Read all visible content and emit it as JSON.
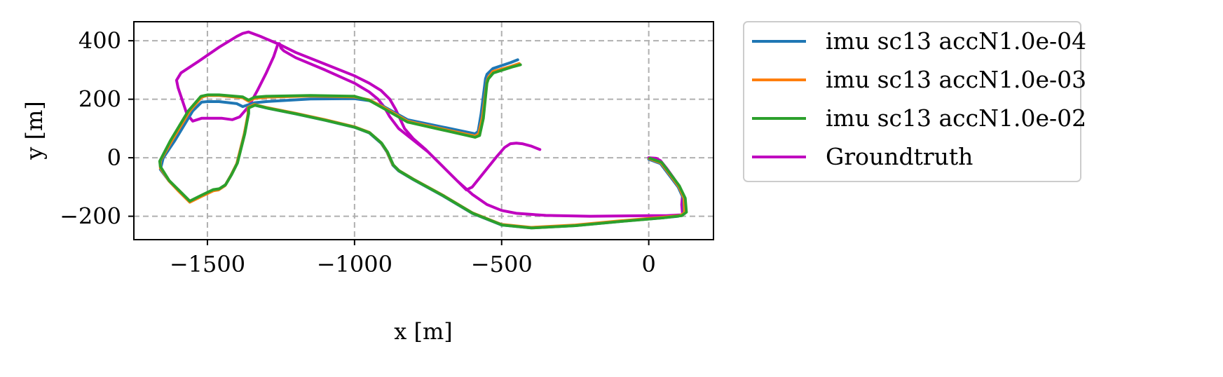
{
  "chart_data": {
    "type": "line",
    "title": "",
    "xlabel": "x [m]",
    "ylabel": "y [m]",
    "xlim": [
      -1750,
      220
    ],
    "ylim": [
      -280,
      465
    ],
    "x_ticks": [
      -1500,
      -1000,
      -500,
      0
    ],
    "x_tick_labels": [
      "−1500",
      "−1000",
      "−500",
      "0"
    ],
    "y_ticks": [
      -200,
      0,
      200,
      400
    ],
    "y_tick_labels": [
      "−200",
      "0",
      "200",
      "400"
    ],
    "grid": true,
    "grid_style": "dashed",
    "legend_position": "outside-right-top",
    "series": [
      {
        "name": "imu sc13 accN1.0e-04",
        "color": "#1f77b4",
        "points": [
          [
            -445,
            335
          ],
          [
            -470,
            325
          ],
          [
            -530,
            305
          ],
          [
            -550,
            285
          ],
          [
            -555,
            270
          ],
          [
            -570,
            150
          ],
          [
            -580,
            90
          ],
          [
            -590,
            82
          ],
          [
            -700,
            105
          ],
          [
            -820,
            130
          ],
          [
            -900,
            175
          ],
          [
            -950,
            195
          ],
          [
            -1000,
            202
          ],
          [
            -1150,
            201
          ],
          [
            -1300,
            192
          ],
          [
            -1340,
            188
          ],
          [
            -1380,
            175
          ],
          [
            -1400,
            185
          ],
          [
            -1460,
            192
          ],
          [
            -1500,
            192
          ],
          [
            -1520,
            190
          ],
          [
            -1550,
            160
          ],
          [
            -1610,
            60
          ],
          [
            -1650,
            0
          ],
          [
            -1660,
            -40
          ],
          [
            -1630,
            -80
          ],
          [
            -1600,
            -110
          ],
          [
            -1560,
            -150
          ],
          [
            -1520,
            -130
          ],
          [
            -1480,
            -112
          ],
          [
            -1460,
            -108
          ],
          [
            -1440,
            -95
          ],
          [
            -1420,
            -60
          ],
          [
            -1400,
            -20
          ],
          [
            -1390,
            20
          ],
          [
            -1375,
            80
          ],
          [
            -1360,
            150
          ],
          [
            -1360,
            170
          ],
          [
            -1340,
            180
          ],
          [
            -1300,
            170
          ],
          [
            -1200,
            150
          ],
          [
            -1100,
            128
          ],
          [
            -1000,
            104
          ],
          [
            -950,
            85
          ],
          [
            -910,
            50
          ],
          [
            -890,
            20
          ],
          [
            -870,
            -25
          ],
          [
            -850,
            -45
          ],
          [
            -800,
            -75
          ],
          [
            -700,
            -130
          ],
          [
            -600,
            -190
          ],
          [
            -500,
            -230
          ],
          [
            -400,
            -240
          ],
          [
            -250,
            -232
          ],
          [
            -100,
            -218
          ],
          [
            50,
            -205
          ],
          [
            100,
            -200
          ],
          [
            120,
            -190
          ],
          [
            118,
            -140
          ],
          [
            100,
            -100
          ],
          [
            70,
            -60
          ],
          [
            40,
            -20
          ],
          [
            0,
            -5
          ]
        ]
      },
      {
        "name": "imu sc13 accN1.0e-03",
        "color": "#ff7f0e",
        "points": [
          [
            -440,
            322
          ],
          [
            -470,
            312
          ],
          [
            -530,
            295
          ],
          [
            -545,
            275
          ],
          [
            -550,
            260
          ],
          [
            -565,
            140
          ],
          [
            -578,
            82
          ],
          [
            -590,
            74
          ],
          [
            -700,
            98
          ],
          [
            -820,
            125
          ],
          [
            -900,
            172
          ],
          [
            -950,
            198
          ],
          [
            -1000,
            208
          ],
          [
            -1150,
            211
          ],
          [
            -1300,
            207
          ],
          [
            -1340,
            203
          ],
          [
            -1360,
            193
          ],
          [
            -1380,
            205
          ],
          [
            -1460,
            213
          ],
          [
            -1500,
            213
          ],
          [
            -1520,
            207
          ],
          [
            -1560,
            160
          ],
          [
            -1620,
            60
          ],
          [
            -1660,
            -10
          ],
          [
            -1660,
            -35
          ],
          [
            -1630,
            -80
          ],
          [
            -1600,
            -112
          ],
          [
            -1560,
            -152
          ],
          [
            -1520,
            -132
          ],
          [
            -1480,
            -113
          ],
          [
            -1462,
            -110
          ],
          [
            -1440,
            -95
          ],
          [
            -1420,
            -60
          ],
          [
            -1400,
            -20
          ],
          [
            -1390,
            20
          ],
          [
            -1375,
            80
          ],
          [
            -1362,
            150
          ],
          [
            -1362,
            172
          ],
          [
            -1340,
            182
          ],
          [
            -1300,
            172
          ],
          [
            -1200,
            152
          ],
          [
            -1100,
            130
          ],
          [
            -1000,
            106
          ],
          [
            -950,
            87
          ],
          [
            -910,
            52
          ],
          [
            -890,
            22
          ],
          [
            -870,
            -23
          ],
          [
            -850,
            -43
          ],
          [
            -800,
            -73
          ],
          [
            -700,
            -128
          ],
          [
            -600,
            -188
          ],
          [
            -500,
            -228
          ],
          [
            -400,
            -238
          ],
          [
            -250,
            -230
          ],
          [
            -100,
            -216
          ],
          [
            50,
            -203
          ],
          [
            105,
            -198
          ],
          [
            122,
            -188
          ],
          [
            120,
            -138
          ],
          [
            102,
            -98
          ],
          [
            72,
            -58
          ],
          [
            42,
            -18
          ],
          [
            2,
            -3
          ]
        ]
      },
      {
        "name": "imu sc13 accN1.0e-02",
        "color": "#2ca02c",
        "points": [
          [
            -436,
            318
          ],
          [
            -465,
            310
          ],
          [
            -528,
            290
          ],
          [
            -545,
            270
          ],
          [
            -550,
            255
          ],
          [
            -562,
            135
          ],
          [
            -575,
            76
          ],
          [
            -590,
            70
          ],
          [
            -700,
            95
          ],
          [
            -820,
            122
          ],
          [
            -900,
            168
          ],
          [
            -950,
            196
          ],
          [
            -1000,
            210
          ],
          [
            -1150,
            213
          ],
          [
            -1300,
            210
          ],
          [
            -1340,
            207
          ],
          [
            -1360,
            197
          ],
          [
            -1380,
            208
          ],
          [
            -1460,
            215
          ],
          [
            -1500,
            215
          ],
          [
            -1522,
            210
          ],
          [
            -1565,
            160
          ],
          [
            -1625,
            60
          ],
          [
            -1662,
            -12
          ],
          [
            -1660,
            -30
          ],
          [
            -1630,
            -78
          ],
          [
            -1600,
            -108
          ],
          [
            -1560,
            -148
          ],
          [
            -1520,
            -128
          ],
          [
            -1480,
            -109
          ],
          [
            -1460,
            -106
          ],
          [
            -1438,
            -92
          ],
          [
            -1418,
            -58
          ],
          [
            -1398,
            -18
          ],
          [
            -1388,
            22
          ],
          [
            -1373,
            82
          ],
          [
            -1360,
            152
          ],
          [
            -1360,
            170
          ],
          [
            -1338,
            180
          ],
          [
            -1298,
            170
          ],
          [
            -1198,
            150
          ],
          [
            -1098,
            128
          ],
          [
            -998,
            104
          ],
          [
            -948,
            85
          ],
          [
            -908,
            50
          ],
          [
            -888,
            20
          ],
          [
            -868,
            -25
          ],
          [
            -848,
            -45
          ],
          [
            -798,
            -75
          ],
          [
            -698,
            -130
          ],
          [
            -598,
            -190
          ],
          [
            -498,
            -230
          ],
          [
            -398,
            -240
          ],
          [
            -248,
            -232
          ],
          [
            -98,
            -218
          ],
          [
            52,
            -205
          ],
          [
            112,
            -198
          ],
          [
            128,
            -186
          ],
          [
            124,
            -138
          ],
          [
            104,
            -96
          ],
          [
            74,
            -56
          ],
          [
            44,
            -16
          ],
          [
            4,
            -2
          ]
        ]
      },
      {
        "name": "Groundtruth",
        "color": "#bf00bf",
        "points": [
          [
            0,
            0
          ],
          [
            25,
            -2
          ],
          [
            40,
            -10
          ],
          [
            60,
            -35
          ],
          [
            85,
            -70
          ],
          [
            105,
            -100
          ],
          [
            115,
            -125
          ],
          [
            112,
            -160
          ],
          [
            115,
            -195
          ],
          [
            60,
            -198
          ],
          [
            0,
            -198
          ],
          [
            -200,
            -200
          ],
          [
            -350,
            -197
          ],
          [
            -450,
            -190
          ],
          [
            -500,
            -180
          ],
          [
            -550,
            -160
          ],
          [
            -600,
            -125
          ],
          [
            -650,
            -80
          ],
          [
            -700,
            -30
          ],
          [
            -750,
            20
          ],
          [
            -800,
            60
          ],
          [
            -850,
            100
          ],
          [
            -880,
            140
          ],
          [
            -900,
            175
          ],
          [
            -920,
            200
          ],
          [
            -950,
            225
          ],
          [
            -1000,
            255
          ],
          [
            -1100,
            300
          ],
          [
            -1200,
            342
          ],
          [
            -1240,
            365
          ],
          [
            -1250,
            375
          ],
          [
            -1255,
            390
          ],
          [
            -1260,
            390
          ],
          [
            -1275,
            345
          ],
          [
            -1300,
            290
          ],
          [
            -1330,
            230
          ],
          [
            -1360,
            175
          ],
          [
            -1390,
            140
          ],
          [
            -1415,
            130
          ],
          [
            -1450,
            135
          ],
          [
            -1520,
            135
          ],
          [
            -1550,
            125
          ],
          [
            -1570,
            150
          ],
          [
            -1590,
            210
          ],
          [
            -1600,
            240
          ],
          [
            -1605,
            265
          ],
          [
            -1590,
            290
          ],
          [
            -1530,
            330
          ],
          [
            -1460,
            378
          ],
          [
            -1400,
            415
          ],
          [
            -1380,
            425
          ],
          [
            -1360,
            430
          ],
          [
            -1320,
            415
          ],
          [
            -1250,
            385
          ],
          [
            -1200,
            360
          ],
          [
            -1100,
            320
          ],
          [
            -1000,
            280
          ],
          [
            -950,
            255
          ],
          [
            -910,
            230
          ],
          [
            -880,
            200
          ],
          [
            -860,
            165
          ],
          [
            -830,
            100
          ],
          [
            -800,
            65
          ],
          [
            -760,
            30
          ],
          [
            -700,
            -30
          ],
          [
            -650,
            -80
          ],
          [
            -620,
            -110
          ],
          [
            -600,
            -100
          ],
          [
            -560,
            -50
          ],
          [
            -520,
            0
          ],
          [
            -490,
            35
          ],
          [
            -470,
            48
          ],
          [
            -450,
            50
          ],
          [
            -430,
            48
          ],
          [
            -400,
            40
          ],
          [
            -370,
            28
          ]
        ]
      }
    ]
  }
}
